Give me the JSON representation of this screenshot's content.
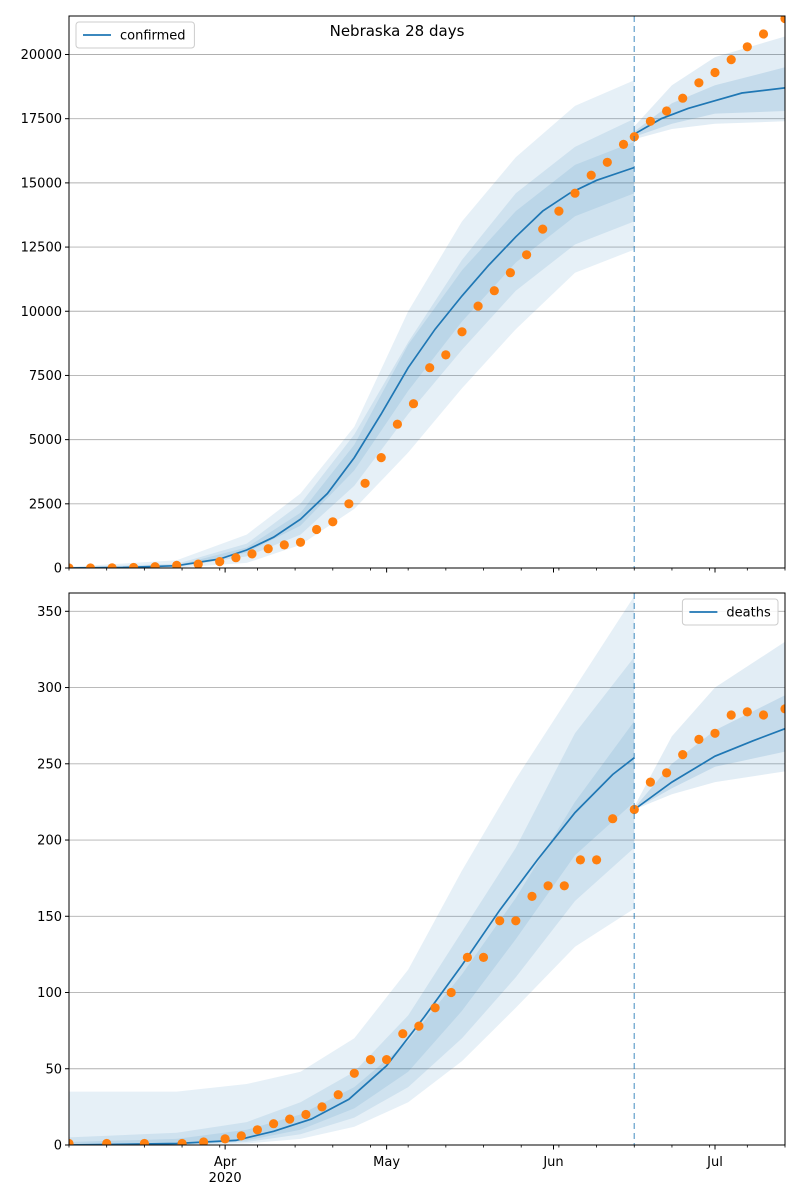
{
  "figure": {
    "title": "Nebraska 28 days"
  },
  "colors": {
    "model_line": "#1f77b4",
    "observed": "#ff7f0e",
    "band_90": "#1f77b4",
    "band_inner": "#1f77b4",
    "grid": "#b0b0b0",
    "vline": "#1f77b4"
  },
  "x_axis": {
    "range": [
      "2020-03-03",
      "2020-07-14"
    ],
    "month_ticks": [
      {
        "date": "2020-04-01",
        "label": "Apr"
      },
      {
        "date": "2020-05-01",
        "label": "May"
      },
      {
        "date": "2020-06-01",
        "label": "Jun"
      },
      {
        "date": "2020-07-01",
        "label": "Jul"
      }
    ],
    "year_label": "2020",
    "forecast_start": "2020-06-16"
  },
  "chart_data": [
    {
      "type": "line",
      "title": "Nebraska 28 days",
      "legend": {
        "label": "confirmed",
        "placement": "top-left"
      },
      "ylim": [
        0,
        21500
      ],
      "yticks": [
        0,
        2500,
        5000,
        7500,
        10000,
        12500,
        15000,
        17500,
        20000
      ],
      "grid": "horizontal",
      "forecast_start": "2020-06-16",
      "model_fit": {
        "x": [
          "2020-03-03",
          "2020-03-13",
          "2020-03-23",
          "2020-03-31",
          "2020-04-05",
          "2020-04-10",
          "2020-04-15",
          "2020-04-20",
          "2020-04-25",
          "2020-04-30",
          "2020-05-05",
          "2020-05-10",
          "2020-05-15",
          "2020-05-20",
          "2020-05-25",
          "2020-05-30",
          "2020-06-04",
          "2020-06-09",
          "2020-06-16"
        ],
        "values": [
          0,
          20,
          90,
          350,
          700,
          1200,
          1900,
          2900,
          4300,
          6000,
          7800,
          9300,
          10600,
          11800,
          12900,
          13900,
          14600,
          15100,
          15600
        ]
      },
      "forecast": {
        "x": [
          "2020-06-16",
          "2020-06-21",
          "2020-06-26",
          "2020-07-01",
          "2020-07-06",
          "2020-07-14"
        ],
        "values": [
          16900,
          17500,
          17900,
          18200,
          18500,
          18700
        ]
      },
      "bands": [
        {
          "level": "outer",
          "x": [
            "2020-03-03",
            "2020-03-23",
            "2020-04-05",
            "2020-04-15",
            "2020-04-25",
            "2020-05-05",
            "2020-05-15",
            "2020-05-25",
            "2020-06-05",
            "2020-06-16"
          ],
          "lower": [
            0,
            10,
            200,
            900,
            2300,
            4500,
            7000,
            9300,
            11500,
            12400
          ],
          "upper": [
            50,
            300,
            1300,
            2900,
            5500,
            10000,
            13500,
            16000,
            18000,
            19000
          ]
        },
        {
          "level": "middle",
          "x": [
            "2020-03-03",
            "2020-03-23",
            "2020-04-05",
            "2020-04-15",
            "2020-04-25",
            "2020-05-05",
            "2020-05-15",
            "2020-05-25",
            "2020-06-05",
            "2020-06-16"
          ],
          "lower": [
            0,
            40,
            450,
            1300,
            3200,
            6000,
            8500,
            10800,
            12600,
            13500
          ],
          "upper": [
            30,
            160,
            950,
            2500,
            5200,
            8800,
            12000,
            14600,
            16400,
            17500
          ]
        },
        {
          "level": "inner",
          "x": [
            "2020-03-03",
            "2020-03-23",
            "2020-04-05",
            "2020-04-15",
            "2020-04-25",
            "2020-05-05",
            "2020-05-15",
            "2020-05-25",
            "2020-06-05",
            "2020-06-16"
          ],
          "lower": [
            0,
            70,
            600,
            1650,
            3800,
            6900,
            9600,
            11900,
            13700,
            14600
          ],
          "upper": [
            20,
            110,
            800,
            2150,
            4800,
            8700,
            11600,
            13900,
            15700,
            16600
          ]
        },
        {
          "level": "forecast-outer",
          "x": [
            "2020-06-16",
            "2020-06-23",
            "2020-07-01",
            "2020-07-14"
          ],
          "lower": [
            16700,
            17100,
            17300,
            17400
          ],
          "upper": [
            17200,
            18800,
            19900,
            20700
          ]
        },
        {
          "level": "forecast-inner",
          "x": [
            "2020-06-16",
            "2020-06-23",
            "2020-07-01",
            "2020-07-14"
          ],
          "lower": [
            16800,
            17300,
            17700,
            17800
          ],
          "upper": [
            17000,
            18100,
            18800,
            19500
          ]
        }
      ],
      "observed": {
        "x": [
          "2020-03-03",
          "2020-03-07",
          "2020-03-11",
          "2020-03-15",
          "2020-03-19",
          "2020-03-23",
          "2020-03-27",
          "2020-03-31",
          "2020-04-03",
          "2020-04-06",
          "2020-04-09",
          "2020-04-12",
          "2020-04-15",
          "2020-04-18",
          "2020-04-21",
          "2020-04-24",
          "2020-04-27",
          "2020-04-30",
          "2020-05-03",
          "2020-05-06",
          "2020-05-09",
          "2020-05-12",
          "2020-05-15",
          "2020-05-18",
          "2020-05-21",
          "2020-05-24",
          "2020-05-27",
          "2020-05-30",
          "2020-06-02",
          "2020-06-05",
          "2020-06-08",
          "2020-06-11",
          "2020-06-14",
          "2020-06-16",
          "2020-06-19",
          "2020-06-22",
          "2020-06-25",
          "2020-06-28",
          "2020-07-01",
          "2020-07-04",
          "2020-07-07",
          "2020-07-10",
          "2020-07-14"
        ],
        "values": [
          0,
          0,
          3,
          20,
          50,
          100,
          150,
          250,
          400,
          550,
          750,
          900,
          1000,
          1500,
          1800,
          2500,
          3300,
          4300,
          5600,
          6400,
          7800,
          8300,
          9200,
          10200,
          10800,
          11500,
          12200,
          13200,
          13900,
          14600,
          15300,
          15800,
          16500,
          16800,
          17400,
          17800,
          18300,
          18900,
          19300,
          19800,
          20300,
          20800,
          21400
        ]
      }
    },
    {
      "type": "line",
      "legend": {
        "label": "deaths",
        "placement": "top-right"
      },
      "ylim": [
        0,
        362
      ],
      "yticks": [
        0,
        50,
        100,
        150,
        200,
        250,
        300,
        350
      ],
      "grid": "horizontal",
      "forecast_start": "2020-06-16",
      "model_fit": {
        "x": [
          "2020-03-03",
          "2020-03-23",
          "2020-04-03",
          "2020-04-10",
          "2020-04-17",
          "2020-04-24",
          "2020-05-01",
          "2020-05-08",
          "2020-05-15",
          "2020-05-22",
          "2020-05-29",
          "2020-06-05",
          "2020-06-12",
          "2020-06-16"
        ],
        "values": [
          0,
          1,
          3,
          9,
          17,
          30,
          52,
          84,
          118,
          154,
          187,
          218,
          243,
          254
        ]
      },
      "forecast": {
        "x": [
          "2020-06-16",
          "2020-06-23",
          "2020-07-01",
          "2020-07-08",
          "2020-07-14"
        ],
        "values": [
          220,
          238,
          255,
          265,
          273
        ]
      },
      "bands": [
        {
          "level": "outer",
          "x": [
            "2020-03-03",
            "2020-03-23",
            "2020-04-05",
            "2020-04-15",
            "2020-04-25",
            "2020-05-05",
            "2020-05-15",
            "2020-05-25",
            "2020-06-05",
            "2020-06-16"
          ],
          "lower": [
            0,
            0,
            1,
            4,
            12,
            28,
            55,
            90,
            130,
            155
          ],
          "upper": [
            35,
            35,
            40,
            48,
            70,
            115,
            180,
            240,
            300,
            360
          ]
        },
        {
          "level": "middle",
          "x": [
            "2020-03-03",
            "2020-03-23",
            "2020-04-05",
            "2020-04-15",
            "2020-04-25",
            "2020-05-05",
            "2020-05-15",
            "2020-05-25",
            "2020-06-05",
            "2020-06-16"
          ],
          "lower": [
            0,
            0,
            2,
            7,
            18,
            38,
            70,
            110,
            160,
            195
          ],
          "upper": [
            5,
            8,
            15,
            28,
            48,
            85,
            140,
            195,
            270,
            320
          ]
        },
        {
          "level": "inner",
          "x": [
            "2020-03-03",
            "2020-03-23",
            "2020-04-05",
            "2020-04-15",
            "2020-04-25",
            "2020-05-05",
            "2020-05-15",
            "2020-05-25",
            "2020-06-05",
            "2020-06-16"
          ],
          "lower": [
            0,
            1,
            3,
            10,
            24,
            48,
            88,
            135,
            190,
            225
          ],
          "upper": [
            2,
            4,
            10,
            20,
            38,
            68,
            112,
            162,
            225,
            278
          ]
        },
        {
          "level": "forecast-outer",
          "x": [
            "2020-06-16",
            "2020-06-23",
            "2020-07-01",
            "2020-07-14"
          ],
          "lower": [
            220,
            230,
            238,
            245
          ],
          "upper": [
            222,
            268,
            300,
            330
          ]
        },
        {
          "level": "forecast-inner",
          "x": [
            "2020-06-16",
            "2020-06-23",
            "2020-07-01",
            "2020-07-14"
          ],
          "lower": [
            220,
            234,
            248,
            258
          ],
          "upper": [
            221,
            250,
            272,
            295
          ]
        }
      ],
      "observed": {
        "x": [
          "2020-03-03",
          "2020-03-10",
          "2020-03-17",
          "2020-03-24",
          "2020-03-28",
          "2020-04-01",
          "2020-04-04",
          "2020-04-07",
          "2020-04-10",
          "2020-04-13",
          "2020-04-16",
          "2020-04-19",
          "2020-04-22",
          "2020-04-25",
          "2020-04-28",
          "2020-05-01",
          "2020-05-04",
          "2020-05-07",
          "2020-05-10",
          "2020-05-13",
          "2020-05-16",
          "2020-05-19",
          "2020-05-22",
          "2020-05-25",
          "2020-05-28",
          "2020-05-31",
          "2020-06-03",
          "2020-06-06",
          "2020-06-09",
          "2020-06-12",
          "2020-06-16",
          "2020-06-19",
          "2020-06-22",
          "2020-06-25",
          "2020-06-28",
          "2020-07-01",
          "2020-07-04",
          "2020-07-07",
          "2020-07-10",
          "2020-07-14"
        ],
        "values": [
          1,
          1,
          1,
          1,
          2,
          4,
          6,
          10,
          14,
          17,
          20,
          25,
          33,
          47,
          56,
          56,
          73,
          78,
          90,
          100,
          123,
          123,
          147,
          147,
          163,
          170,
          170,
          187,
          187,
          214,
          220,
          238,
          244,
          256,
          266,
          270,
          282,
          284,
          282,
          286
        ]
      }
    }
  ]
}
